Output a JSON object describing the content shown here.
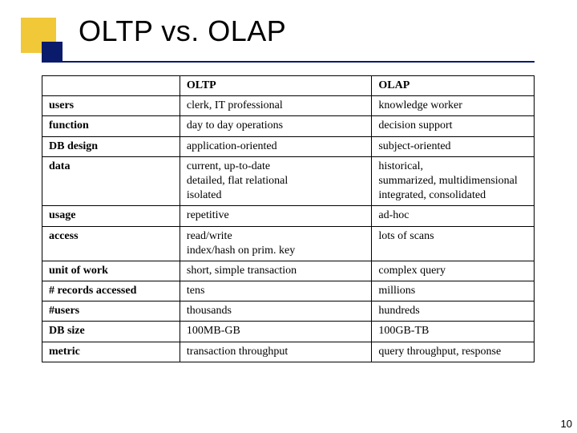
{
  "title": "OLTP vs. OLAP",
  "slide_number": "10",
  "deco": {
    "square_color": "#f0c838",
    "accent_color": "#0b1b6b"
  },
  "table": {
    "type": "table",
    "column_widths_pct": [
      28,
      39,
      33
    ],
    "border_color": "#000000",
    "font_family": "Times New Roman",
    "cell_fontsize": 14,
    "header": {
      "blank": "",
      "col1": "OLTP",
      "col2": "OLAP"
    },
    "rows": [
      {
        "label": "users",
        "oltp": "clerk, IT professional",
        "olap": "knowledge worker",
        "group_top": true
      },
      {
        "label": "function",
        "oltp": "day to day operations",
        "olap": "decision support",
        "group_top": true
      },
      {
        "label": "DB design",
        "oltp": "application-oriented",
        "olap": "subject-oriented",
        "group_top": true
      },
      {
        "label": "data",
        "oltp": "current, up-to-date\ndetailed, flat relational\nisolated",
        "olap": "historical,\nsummarized, multidimensional\nintegrated, consolidated",
        "group_top": true
      },
      {
        "label": "usage",
        "oltp": "repetitive",
        "olap": "ad-hoc",
        "group_top": false
      },
      {
        "label": "access",
        "oltp": "read/write\nindex/hash on prim. key",
        "olap": "lots of scans",
        "group_top": true
      },
      {
        "label": "unit of work",
        "oltp": "short, simple transaction",
        "olap": "complex query",
        "group_top": false
      },
      {
        "label": "# records accessed",
        "oltp": "tens",
        "olap": "millions",
        "group_top": true
      },
      {
        "label": "#users",
        "oltp": "thousands",
        "olap": "hundreds",
        "group_top": true
      },
      {
        "label": "DB size",
        "oltp": "100MB-GB",
        "olap": "100GB-TB",
        "group_top": true
      },
      {
        "label": "metric",
        "oltp": "transaction throughput",
        "olap": "query throughput, response",
        "group_top": true
      }
    ]
  }
}
